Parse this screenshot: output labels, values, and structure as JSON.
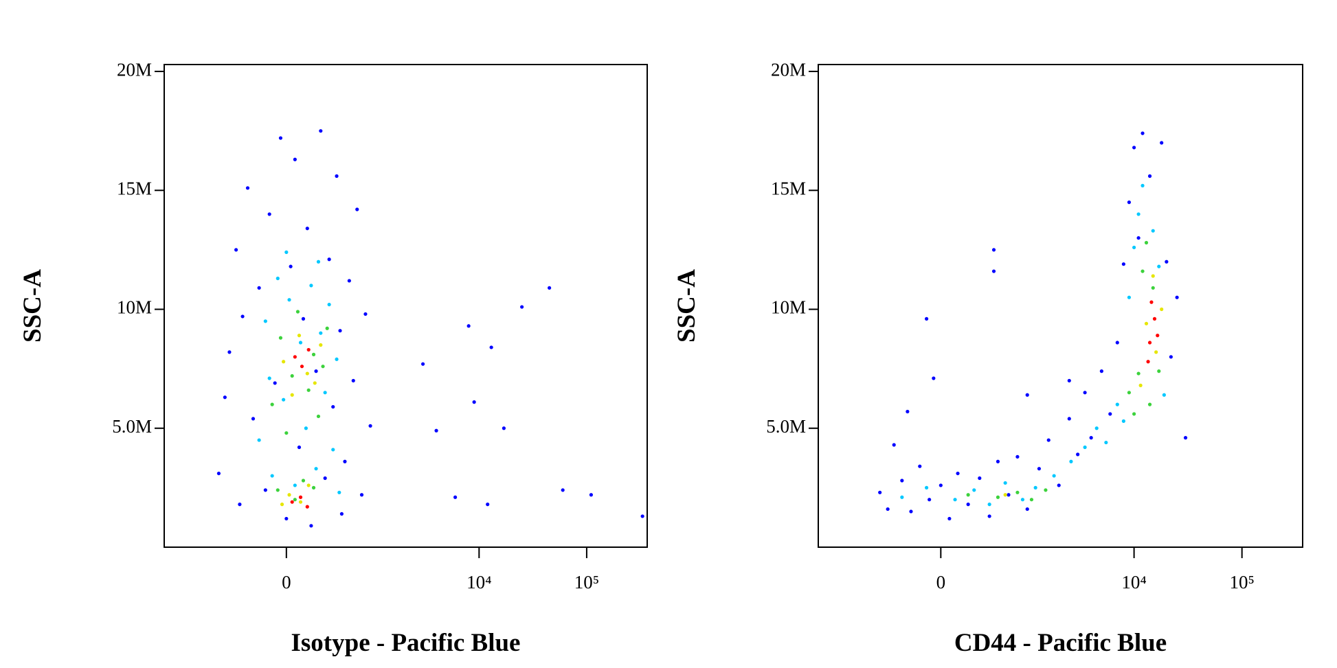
{
  "chart_data": [
    {
      "type": "scatter",
      "x_label": "Isotype - Pacific Blue",
      "y_label": "SSC-A",
      "xscale": "biexponential",
      "xlim": [
        -2200,
        365000
      ],
      "ylim": [
        0,
        20290000.0
      ],
      "xticks": [
        0,
        {
          "value": 10000,
          "label": "10⁴"
        },
        {
          "value": 100000,
          "label": "10⁵"
        }
      ],
      "yticks": [
        {
          "value": 5000000.0,
          "label": "5.0M"
        },
        {
          "value": 10000000.0,
          "label": "10M"
        },
        {
          "value": 15000000.0,
          "label": "15M"
        },
        {
          "value": 20000000.0,
          "label": "20M"
        }
      ],
      "series": [
        {
          "color": "#0000ff",
          "x": [
            -650,
            -500,
            -420,
            -380,
            -300,
            -250,
            -200,
            -150,
            -120,
            -80,
            -40,
            0,
            30,
            60,
            90,
            120,
            150,
            180,
            220,
            260,
            300,
            340,
            380,
            420,
            460,
            520,
            580,
            640,
            700,
            780,
            850,
            950,
            -560,
            -350,
            480,
            3000,
            8000,
            13000,
            25000,
            45000,
            9000,
            17000,
            6000,
            60000,
            110000,
            330000,
            12000,
            4000
          ],
          "values": [
            3100000.0,
            8200000.0,
            12500000.0,
            1800000.0,
            15100000.0,
            5400000.0,
            10900000.0,
            2400000.0,
            14000000.0,
            6900000.0,
            17200000.0,
            1200000.0,
            11800000.0,
            16300000.0,
            4200000.0,
            9600000.0,
            13400000.0,
            900000.0,
            7400000.0,
            17500000.0,
            2900000.0,
            12100000.0,
            5900000.0,
            15600000.0,
            9100000.0,
            3600000.0,
            11200000.0,
            7000000.0,
            14200000.0,
            2200000.0,
            9800000.0,
            5100000.0,
            6300000.0,
            9700000.0,
            1400000.0,
            7700000.0,
            9300000.0,
            8400000.0,
            10100000.0,
            10900000.0,
            6100000.0,
            5000000.0,
            2100000.0,
            2400000.0,
            2200000.0,
            1300000.0,
            1800000.0,
            4900000.0
          ]
        },
        {
          "color": "#00c8ff",
          "x": [
            -200,
            -150,
            -100,
            -60,
            -20,
            20,
            60,
            100,
            140,
            180,
            220,
            260,
            300,
            340,
            380,
            420,
            -120,
            240,
            0,
            450
          ],
          "values": [
            4500000.0,
            9500000.0,
            3000000.0,
            11300000.0,
            6200000.0,
            10400000.0,
            2600000.0,
            8600000.0,
            5000000.0,
            11000000.0,
            3300000.0,
            9000000.0,
            6500000.0,
            10200000.0,
            4100000.0,
            7900000.0,
            7100000.0,
            12000000.0,
            12400000.0,
            2300000.0
          ]
        },
        {
          "color": "#3cd23c",
          "x": [
            -100,
            -40,
            0,
            40,
            80,
            120,
            160,
            200,
            240,
            280,
            320,
            60,
            -60,
            200
          ],
          "values": [
            6000000.0,
            8800000.0,
            4800000.0,
            7200000.0,
            9900000.0,
            2800000.0,
            6600000.0,
            8100000.0,
            5500000.0,
            7600000.0,
            9200000.0,
            2000000.0,
            2400000.0,
            2500000.0
          ]
        },
        {
          "color": "#e6e600",
          "x": [
            -20,
            40,
            90,
            150,
            210,
            260,
            20,
            100,
            160,
            -30
          ],
          "values": [
            7800000.0,
            6400000.0,
            8900000.0,
            7300000.0,
            6900000.0,
            8500000.0,
            2200000.0,
            1900000.0,
            2600000.0,
            1800000.0
          ]
        },
        {
          "color": "#ff0000",
          "x": [
            60,
            110,
            160,
            100,
            40,
            150
          ],
          "values": [
            8000000.0,
            7600000.0,
            8300000.0,
            2100000.0,
            1900000.0,
            1700000.0
          ]
        }
      ]
    },
    {
      "type": "scatter",
      "x_label": "CD44 - Pacific Blue",
      "y_label": "SSC-A",
      "xscale": "biexponential",
      "xlim": [
        -2200,
        365000
      ],
      "ylim": [
        0,
        20290000.0
      ],
      "xticks": [
        0,
        {
          "value": 10000,
          "label": "10⁴"
        },
        {
          "value": 100000,
          "label": "10⁵"
        }
      ],
      "yticks": [
        {
          "value": 5000000.0,
          "label": "5.0M"
        },
        {
          "value": 10000000.0,
          "label": "10M"
        },
        {
          "value": 15000000.0,
          "label": "15M"
        },
        {
          "value": 20000000.0,
          "label": "20M"
        }
      ],
      "series": [
        {
          "color": "#0000ff",
          "x": [
            -550,
            -450,
            -380,
            -300,
            -220,
            -150,
            -80,
            0,
            60,
            120,
            200,
            300,
            400,
            500,
            650,
            800,
            1000,
            1300,
            1600,
            2000,
            2500,
            3000,
            3500,
            4000,
            5000,
            6000,
            7000,
            8000,
            9000,
            10000,
            11000,
            12000,
            14000,
            18000,
            20000,
            22000,
            25000,
            30000,
            -100,
            -50,
            450,
            450,
            1000,
            2500,
            -250
          ],
          "values": [
            2300000.0,
            1600000.0,
            4300000.0,
            2800000.0,
            1500000.0,
            3400000.0,
            2000000.0,
            2600000.0,
            1200000.0,
            3100000.0,
            1800000.0,
            2900000.0,
            1300000.0,
            3600000.0,
            2200000.0,
            3800000.0,
            1600000.0,
            3300000.0,
            4500000.0,
            2600000.0,
            5400000.0,
            3900000.0,
            6500000.0,
            4600000.0,
            7400000.0,
            5600000.0,
            8600000.0,
            11900000.0,
            14500000.0,
            16800000.0,
            13000000.0,
            17400000.0,
            15600000.0,
            17000000.0,
            12000000.0,
            8000000.0,
            10500000.0,
            4600000.0,
            9600000.0,
            7100000.0,
            11600000.0,
            12500000.0,
            6400000.0,
            7000000.0,
            5700000.0
          ]
        },
        {
          "color": "#00c8ff",
          "x": [
            -300,
            -100,
            100,
            250,
            400,
            600,
            900,
            1200,
            1800,
            2600,
            3500,
            4500,
            5500,
            7000,
            8000,
            9000,
            10000,
            11000,
            12000,
            15000,
            17000,
            19000
          ],
          "values": [
            2100000.0,
            2500000.0,
            2000000.0,
            2400000.0,
            1800000.0,
            2700000.0,
            2000000.0,
            2500000.0,
            3000000.0,
            3600000.0,
            4200000.0,
            5000000.0,
            4400000.0,
            6000000.0,
            5300000.0,
            10500000.0,
            12600000.0,
            14000000.0,
            15200000.0,
            13300000.0,
            11800000.0,
            6400000.0
          ]
        },
        {
          "color": "#3cd23c",
          "x": [
            200,
            500,
            800,
            1100,
            1500,
            9000,
            10000,
            11000,
            12000,
            13000,
            15000,
            17000,
            14000
          ],
          "values": [
            2200000.0,
            2100000.0,
            2300000.0,
            2000000.0,
            2400000.0,
            6500000.0,
            5600000.0,
            7300000.0,
            11600000.0,
            12800000.0,
            10900000.0,
            7400000.0,
            6000000.0
          ]
        },
        {
          "color": "#e6e600",
          "x": [
            13000,
            15000,
            16000,
            11500,
            600,
            18000
          ],
          "values": [
            9400000.0,
            11400000.0,
            8200000.0,
            6800000.0,
            2200000.0,
            10000000.0
          ]
        },
        {
          "color": "#ff0000",
          "x": [
            14000,
            15500,
            13500,
            16500,
            14500
          ],
          "values": [
            8600000.0,
            9600000.0,
            7800000.0,
            8900000.0,
            10300000.0
          ]
        }
      ]
    }
  ]
}
